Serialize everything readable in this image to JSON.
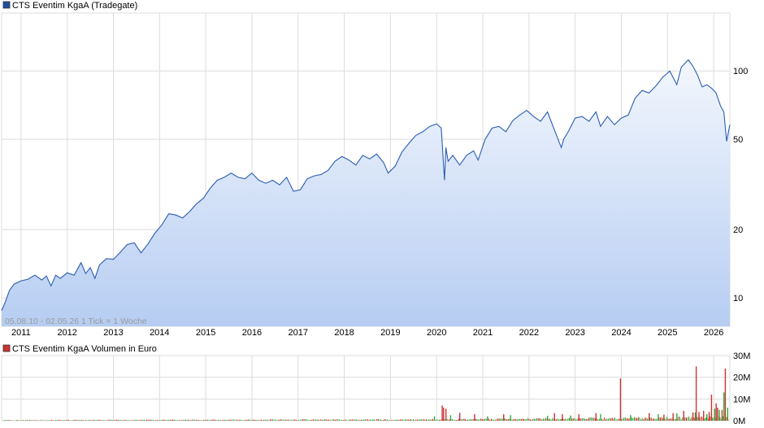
{
  "colors": {
    "price_line": "#2a5db0",
    "fill_top": "#f3f7fd",
    "fill_bottom": "#b6cdf2",
    "grid": "#dcdcdc",
    "volume_red": "#cc3333",
    "volume_green": "#33aa33",
    "legend_price": "#1f4f9f",
    "legend_volume": "#cc3333"
  },
  "chart_data": [
    {
      "type": "line",
      "title": "CTS Eventim KgaA (Tradegate)",
      "y_scale": "log",
      "ylim": [
        7.5,
        180
      ],
      "ytick_labels": [
        "10",
        "20",
        "50",
        "100"
      ],
      "ytick_values": [
        10,
        20,
        50,
        100
      ],
      "xlim": [
        2010.58,
        2026.35
      ],
      "xtick_labels": [
        "2011",
        "2012",
        "2013",
        "2014",
        "2015",
        "2016",
        "2017",
        "2018",
        "2019",
        "2020",
        "2021",
        "2022",
        "2023",
        "2024",
        "2025",
        "2026"
      ],
      "xtick_values": [
        2011,
        2012,
        2013,
        2014,
        2015,
        2016,
        2017,
        2018,
        2019,
        2020,
        2021,
        2022,
        2023,
        2024,
        2025,
        2026
      ],
      "info_text": "05.08.10 - 02.05.26    1 Tick = 1 Woche",
      "series": [
        {
          "x": [
            2010.58,
            2010.65,
            2010.75,
            2010.85,
            2011.0,
            2011.15,
            2011.3,
            2011.45,
            2011.55,
            2011.65,
            2011.75,
            2011.85,
            2012.0,
            2012.15,
            2012.3,
            2012.4,
            2012.5,
            2012.6,
            2012.7,
            2012.85,
            2013.0,
            2013.15,
            2013.3,
            2013.45,
            2013.6,
            2013.75,
            2013.9,
            2014.05,
            2014.2,
            2014.35,
            2014.5,
            2014.65,
            2014.8,
            2014.95,
            2015.1,
            2015.25,
            2015.4,
            2015.55,
            2015.7,
            2015.85,
            2016.0,
            2016.15,
            2016.3,
            2016.45,
            2016.6,
            2016.75,
            2016.9,
            2017.05,
            2017.2,
            2017.35,
            2017.5,
            2017.65,
            2017.8,
            2017.95,
            2018.1,
            2018.25,
            2018.4,
            2018.55,
            2018.7,
            2018.85,
            2018.95,
            2019.1,
            2019.25,
            2019.4,
            2019.55,
            2019.7,
            2019.85,
            2020.0,
            2020.1,
            2020.17,
            2020.2,
            2020.25,
            2020.35,
            2020.5,
            2020.65,
            2020.8,
            2020.9,
            2021.05,
            2021.2,
            2021.35,
            2021.5,
            2021.65,
            2021.8,
            2021.95,
            2022.1,
            2022.25,
            2022.4,
            2022.55,
            2022.7,
            2022.75,
            2022.85,
            2023.0,
            2023.15,
            2023.3,
            2023.45,
            2023.55,
            2023.7,
            2023.85,
            2024.0,
            2024.15,
            2024.3,
            2024.45,
            2024.6,
            2024.75,
            2024.9,
            2025.05,
            2025.2,
            2025.3,
            2025.45,
            2025.55,
            2025.65,
            2025.75,
            2025.85,
            2025.95,
            2026.05,
            2026.15,
            2026.22,
            2026.28,
            2026.35
          ],
          "y": [
            8.8,
            9.5,
            10.8,
            11.5,
            11.9,
            12.1,
            12.6,
            12.0,
            12.5,
            11.3,
            12.6,
            12.2,
            12.9,
            12.6,
            14.3,
            12.8,
            13.6,
            12.2,
            14.0,
            14.9,
            14.8,
            15.9,
            17.2,
            17.5,
            15.8,
            17.3,
            19.3,
            21.0,
            23.5,
            23.2,
            22.5,
            24.0,
            26.0,
            27.5,
            30.5,
            33.0,
            34.0,
            35.5,
            34.0,
            33.5,
            35.5,
            33.0,
            32.0,
            33.0,
            31.5,
            34.0,
            29.5,
            30.0,
            33.5,
            34.5,
            35.0,
            36.5,
            40.0,
            42.0,
            40.5,
            38.5,
            42.5,
            41.0,
            43.0,
            39.5,
            35.5,
            38.0,
            44.0,
            48.0,
            52.0,
            54.0,
            57.0,
            58.5,
            56.0,
            33.0,
            46.0,
            40.0,
            42.5,
            38.5,
            42.5,
            44.5,
            40.5,
            50.0,
            56.0,
            57.0,
            54.0,
            60.5,
            64.0,
            67.0,
            63.0,
            60.0,
            66.0,
            55.0,
            46.0,
            50.0,
            54.0,
            62.0,
            63.0,
            60.0,
            66.0,
            57.0,
            63.0,
            58.0,
            62.0,
            64.0,
            76.0,
            82.0,
            80.0,
            86.0,
            94.0,
            100.0,
            87.0,
            104.0,
            112.0,
            105.0,
            96.0,
            85.0,
            87.0,
            84.0,
            80.0,
            70.0,
            66.0,
            49.0,
            58.0
          ]
        }
      ]
    },
    {
      "type": "bar",
      "title": "CTS Eventim KgaA Volumen in Euro",
      "ylim": [
        0,
        30000000
      ],
      "ytick_labels": [
        "0M",
        "10M",
        "20M",
        "30M"
      ],
      "ytick_values": [
        0,
        10000000,
        20000000,
        30000000
      ],
      "series": [
        {
          "name": "up",
          "x": [
            2019.95,
            2020.3,
            2021.1,
            2021.6,
            2022.4,
            2022.9,
            2023.55,
            2024.2,
            2024.8,
            2025.2,
            2025.6,
            2025.85,
            2026.02,
            2026.12,
            2026.22,
            2026.3
          ],
          "values": [
            2000000,
            2500000,
            2000000,
            2500000,
            2300000,
            2400000,
            3000000,
            2600000,
            3000000,
            3400000,
            3800000,
            3000000,
            5500000,
            5000000,
            13000000,
            6000000
          ]
        },
        {
          "name": "down",
          "x": [
            2020.12,
            2020.15,
            2020.2,
            2020.5,
            2020.82,
            2021.45,
            2022.55,
            2022.72,
            2023.08,
            2023.45,
            2023.98,
            2024.6,
            2024.92,
            2025.12,
            2025.35,
            2025.55,
            2025.62,
            2025.68,
            2025.78,
            2025.9,
            2025.95,
            2026.05,
            2026.08,
            2026.18,
            2026.25
          ],
          "values": [
            7000000,
            6000000,
            5500000,
            3600000,
            3000000,
            3000000,
            3500000,
            3000000,
            3000000,
            3500000,
            19500000,
            3500000,
            2800000,
            3500000,
            4500000,
            3800000,
            25000000,
            4000000,
            4500000,
            4000000,
            12000000,
            8000000,
            6000000,
            5000000,
            24000000
          ]
        }
      ]
    }
  ]
}
